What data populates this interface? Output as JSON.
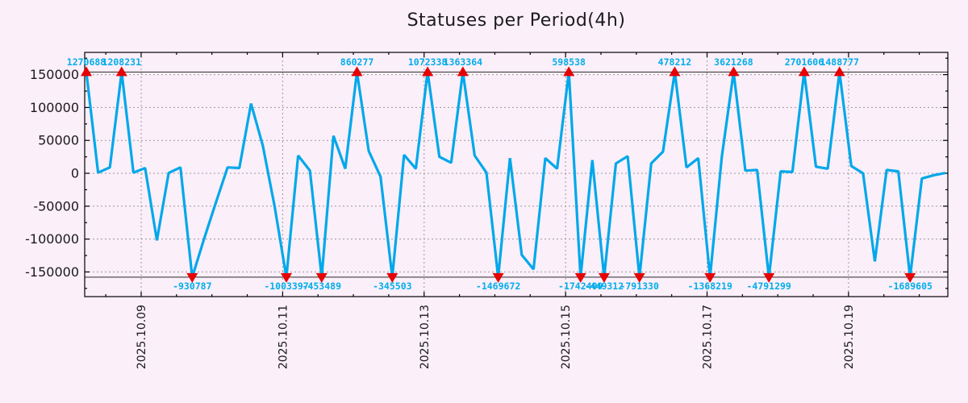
{
  "title": "Statuses per Period(4h)",
  "colors": {
    "background": "#fbeffa",
    "line": "#00a8ea",
    "marker": "#e60000",
    "value_label": "#00aeea",
    "grid": "#9a9a9a",
    "axis": "#000000",
    "tick_label": "#1a1a1a",
    "clip_line": "#2a2a2a"
  },
  "chart_data": {
    "type": "line",
    "title": "Statuses per Period(4h)",
    "period": "4h",
    "grid": true,
    "legend": false,
    "x_tick_labels": [
      "2025.10.09",
      "2025.10.11",
      "2025.10.13",
      "2025.10.15",
      "2025.10.17",
      "2025.10.19"
    ],
    "y_tick_labels": [
      "150000",
      "100000",
      "50000",
      "0",
      "-50000",
      "-100000",
      "-150000"
    ],
    "y_tick_values": [
      150000,
      100000,
      50000,
      0,
      -50000,
      -100000,
      -150000
    ],
    "ylim": [
      -187000,
      184000
    ],
    "clip_top": 154000,
    "clip_bottom": -158000,
    "values": [
      1270688,
      1000,
      9000,
      1208231,
      1000,
      8000,
      -102000,
      500,
      9000,
      -930787,
      -100000,
      -45000,
      9000,
      8000,
      106000,
      42000,
      -50000,
      -1003397,
      27000,
      4000,
      -453489,
      57000,
      7000,
      860277,
      34000,
      -5000,
      -345503,
      28000,
      7000,
      1072338,
      25000,
      16000,
      1363364,
      27000,
      1000,
      -1469672,
      23000,
      -124000,
      -146000,
      23000,
      7000,
      598538,
      -1742409,
      20000,
      -449312,
      15000,
      26000,
      -791330,
      15000,
      33000,
      478212,
      9000,
      23000,
      -1368219,
      25000,
      3621268,
      4000,
      5000,
      -4791299,
      3000,
      2000,
      2701606,
      10000,
      7000,
      1488777,
      11000,
      0,
      -134000,
      5000,
      3000,
      -1689605,
      -8000,
      -3000,
      500
    ],
    "peak_labels": [
      "1270688",
      "1208231",
      "860277",
      "1072338",
      "1363364",
      "598538",
      "478212",
      "3621268",
      "2701606",
      "1488777"
    ],
    "valley_labels": [
      "-930787",
      "-1003397",
      "-453489",
      "-345503",
      "-1469672",
      "-1742409",
      "-449312",
      "-791330",
      "-1368219",
      "-4791299",
      "-1689605"
    ]
  }
}
